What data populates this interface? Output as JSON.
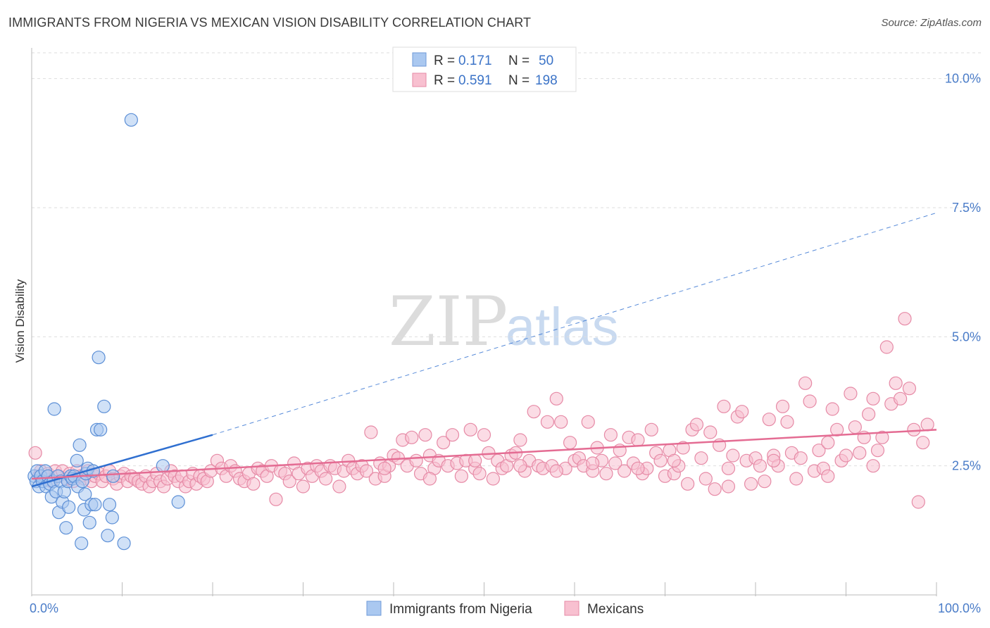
{
  "title": "IMMIGRANTS FROM NIGERIA VS MEXICAN VISION DISABILITY CORRELATION CHART",
  "source": "Source: ZipAtlas.com",
  "watermark": {
    "zip": "ZIP",
    "atlas": "atlas"
  },
  "chart_data": {
    "type": "scatter",
    "ylabel": "Vision Disability",
    "xlim": [
      0,
      100
    ],
    "ylim": [
      0,
      10.5
    ],
    "x_tick_labels": {
      "left": "0.0%",
      "right": "100.0%"
    },
    "y_ticks": [
      {
        "value": 2.5,
        "label": "2.5%"
      },
      {
        "value": 5.0,
        "label": "5.0%"
      },
      {
        "value": 7.5,
        "label": "7.5%"
      },
      {
        "value": 10.0,
        "label": "10.0%"
      }
    ],
    "grid": true,
    "legend_top": [
      {
        "r_label": "R = ",
        "r_value": "0.171",
        "n_label": "N = ",
        "n_value": "50",
        "color": "#aac8f0",
        "stroke": "#6f9ad8"
      },
      {
        "r_label": "R = ",
        "r_value": "0.591",
        "n_label": "N = ",
        "n_value": "198",
        "color": "#f8c0d0",
        "stroke": "#e68aa6"
      }
    ],
    "series": [
      {
        "name": "Immigrants from Nigeria",
        "color": "#aac8f0",
        "stroke": "#5c8fd6",
        "trend_color": "#2f6fd0",
        "trend": {
          "x0": 0,
          "y0": 2.1,
          "x1": 20,
          "y1": 3.1,
          "x_dash_end": 100,
          "y_dash_end": 7.4
        },
        "points": [
          [
            0.3,
            2.3
          ],
          [
            0.5,
            2.2
          ],
          [
            0.6,
            2.4
          ],
          [
            0.8,
            2.1
          ],
          [
            1.0,
            2.3
          ],
          [
            1.2,
            2.2
          ],
          [
            1.5,
            2.4
          ],
          [
            1.6,
            2.1
          ],
          [
            1.8,
            2.3
          ],
          [
            2.0,
            2.15
          ],
          [
            2.2,
            1.9
          ],
          [
            2.4,
            2.2
          ],
          [
            2.5,
            3.6
          ],
          [
            2.7,
            2.0
          ],
          [
            2.9,
            2.3
          ],
          [
            3.0,
            1.6
          ],
          [
            3.2,
            2.2
          ],
          [
            3.4,
            1.8
          ],
          [
            3.6,
            2.0
          ],
          [
            3.8,
            1.3
          ],
          [
            4.0,
            2.2
          ],
          [
            4.1,
            1.7
          ],
          [
            4.3,
            2.3
          ],
          [
            4.5,
            2.25
          ],
          [
            4.7,
            2.3
          ],
          [
            5.0,
            2.6
          ],
          [
            5.1,
            2.1
          ],
          [
            5.3,
            2.9
          ],
          [
            5.5,
            1.0
          ],
          [
            5.6,
            2.2
          ],
          [
            5.8,
            1.65
          ],
          [
            5.9,
            1.95
          ],
          [
            6.0,
            2.35
          ],
          [
            6.2,
            2.45
          ],
          [
            6.4,
            1.4
          ],
          [
            6.6,
            1.75
          ],
          [
            6.8,
            2.4
          ],
          [
            7.0,
            1.75
          ],
          [
            7.2,
            3.2
          ],
          [
            7.4,
            4.6
          ],
          [
            7.6,
            3.2
          ],
          [
            8.0,
            3.65
          ],
          [
            8.4,
            1.15
          ],
          [
            8.6,
            1.75
          ],
          [
            8.9,
            1.5
          ],
          [
            9.0,
            2.3
          ],
          [
            10.2,
            1.0
          ],
          [
            11.0,
            9.2
          ],
          [
            14.5,
            2.5
          ],
          [
            16.2,
            1.8
          ]
        ]
      },
      {
        "name": "Mexicans",
        "color": "#f8c0d0",
        "stroke": "#e68aa6",
        "trend_color": "#e46c93",
        "trend": {
          "x0": 0,
          "y0": 2.25,
          "x1": 100,
          "y1": 3.2
        },
        "points": [
          [
            0.4,
            2.75
          ],
          [
            0.8,
            2.3
          ],
          [
            1.0,
            2.4
          ],
          [
            1.4,
            2.25
          ],
          [
            1.8,
            2.35
          ],
          [
            2.2,
            2.2
          ],
          [
            2.6,
            2.4
          ],
          [
            3.0,
            2.3
          ],
          [
            3.4,
            2.4
          ],
          [
            3.8,
            2.25
          ],
          [
            4.2,
            2.35
          ],
          [
            4.6,
            2.2
          ],
          [
            5.0,
            2.4
          ],
          [
            5.4,
            2.3
          ],
          [
            5.8,
            2.25
          ],
          [
            6.2,
            2.4
          ],
          [
            6.6,
            2.2
          ],
          [
            7.0,
            2.3
          ],
          [
            7.4,
            2.35
          ],
          [
            7.8,
            2.2
          ],
          [
            8.2,
            2.3
          ],
          [
            8.6,
            2.4
          ],
          [
            9.0,
            2.25
          ],
          [
            9.4,
            2.15
          ],
          [
            9.8,
            2.3
          ],
          [
            10.2,
            2.35
          ],
          [
            10.6,
            2.2
          ],
          [
            11.0,
            2.3
          ],
          [
            11.4,
            2.25
          ],
          [
            11.8,
            2.2
          ],
          [
            12.2,
            2.15
          ],
          [
            12.6,
            2.3
          ],
          [
            13.0,
            2.1
          ],
          [
            13.4,
            2.2
          ],
          [
            13.8,
            2.35
          ],
          [
            14.2,
            2.2
          ],
          [
            14.6,
            2.1
          ],
          [
            15.0,
            2.25
          ],
          [
            15.4,
            2.4
          ],
          [
            15.8,
            2.3
          ],
          [
            16.2,
            2.2
          ],
          [
            16.6,
            2.3
          ],
          [
            17.0,
            2.1
          ],
          [
            17.4,
            2.2
          ],
          [
            17.8,
            2.35
          ],
          [
            18.2,
            2.15
          ],
          [
            18.6,
            2.3
          ],
          [
            19.0,
            2.25
          ],
          [
            19.4,
            2.2
          ],
          [
            19.8,
            2.4
          ],
          [
            20.5,
            2.6
          ],
          [
            21.0,
            2.45
          ],
          [
            21.5,
            2.3
          ],
          [
            22.0,
            2.5
          ],
          [
            22.5,
            2.4
          ],
          [
            23.0,
            2.25
          ],
          [
            23.5,
            2.2
          ],
          [
            24.0,
            2.35
          ],
          [
            24.5,
            2.15
          ],
          [
            25.0,
            2.45
          ],
          [
            25.5,
            2.4
          ],
          [
            26.0,
            2.3
          ],
          [
            26.5,
            2.5
          ],
          [
            27.0,
            1.85
          ],
          [
            27.5,
            2.4
          ],
          [
            28.0,
            2.35
          ],
          [
            28.5,
            2.2
          ],
          [
            29.0,
            2.55
          ],
          [
            29.5,
            2.35
          ],
          [
            30.0,
            2.1
          ],
          [
            30.5,
            2.45
          ],
          [
            31.0,
            2.3
          ],
          [
            31.5,
            2.5
          ],
          [
            32.0,
            2.4
          ],
          [
            32.5,
            2.25
          ],
          [
            33.0,
            2.5
          ],
          [
            33.5,
            2.45
          ],
          [
            34.0,
            2.1
          ],
          [
            34.5,
            2.4
          ],
          [
            35.0,
            2.6
          ],
          [
            35.5,
            2.45
          ],
          [
            36.0,
            2.35
          ],
          [
            36.5,
            2.5
          ],
          [
            37.0,
            2.4
          ],
          [
            37.5,
            3.15
          ],
          [
            38.0,
            2.25
          ],
          [
            38.5,
            2.55
          ],
          [
            39.0,
            2.3
          ],
          [
            39.5,
            2.5
          ],
          [
            40.0,
            2.7
          ],
          [
            40.5,
            2.65
          ],
          [
            41.0,
            3.0
          ],
          [
            41.5,
            2.5
          ],
          [
            42.0,
            3.05
          ],
          [
            42.5,
            2.6
          ],
          [
            43.0,
            2.35
          ],
          [
            43.5,
            3.1
          ],
          [
            44.0,
            2.7
          ],
          [
            44.5,
            2.45
          ],
          [
            45.0,
            2.6
          ],
          [
            45.5,
            2.95
          ],
          [
            46.0,
            2.5
          ],
          [
            46.5,
            3.1
          ],
          [
            47.0,
            2.55
          ],
          [
            47.5,
            2.3
          ],
          [
            48.0,
            2.6
          ],
          [
            48.5,
            3.2
          ],
          [
            49.0,
            2.45
          ],
          [
            49.5,
            2.35
          ],
          [
            50.0,
            3.1
          ],
          [
            50.5,
            2.75
          ],
          [
            51.0,
            2.25
          ],
          [
            51.5,
            2.6
          ],
          [
            52.0,
            2.45
          ],
          [
            52.5,
            2.5
          ],
          [
            53.0,
            2.7
          ],
          [
            53.5,
            2.75
          ],
          [
            54.0,
            3.0
          ],
          [
            54.5,
            2.4
          ],
          [
            55.0,
            2.6
          ],
          [
            55.5,
            3.55
          ],
          [
            56.0,
            2.5
          ],
          [
            56.5,
            2.45
          ],
          [
            57.0,
            3.35
          ],
          [
            57.5,
            2.5
          ],
          [
            58.0,
            3.8
          ],
          [
            58.5,
            3.35
          ],
          [
            59.0,
            2.45
          ],
          [
            59.5,
            2.95
          ],
          [
            60.0,
            2.6
          ],
          [
            60.5,
            2.65
          ],
          [
            61.0,
            2.5
          ],
          [
            61.5,
            3.35
          ],
          [
            62.0,
            2.4
          ],
          [
            62.5,
            2.85
          ],
          [
            63.0,
            2.6
          ],
          [
            63.5,
            2.35
          ],
          [
            64.0,
            3.1
          ],
          [
            64.5,
            2.55
          ],
          [
            65.0,
            2.8
          ],
          [
            65.5,
            2.4
          ],
          [
            66.0,
            3.05
          ],
          [
            66.5,
            2.55
          ],
          [
            67.0,
            3.0
          ],
          [
            67.5,
            2.35
          ],
          [
            68.0,
            2.45
          ],
          [
            68.5,
            3.2
          ],
          [
            69.0,
            2.75
          ],
          [
            69.5,
            2.6
          ],
          [
            70.0,
            2.3
          ],
          [
            70.5,
            2.8
          ],
          [
            71.0,
            2.35
          ],
          [
            71.5,
            2.5
          ],
          [
            72.0,
            2.85
          ],
          [
            72.5,
            2.15
          ],
          [
            73.0,
            3.2
          ],
          [
            73.5,
            3.3
          ],
          [
            74.0,
            2.65
          ],
          [
            74.5,
            2.25
          ],
          [
            75.0,
            3.15
          ],
          [
            75.5,
            2.05
          ],
          [
            76.0,
            2.9
          ],
          [
            76.5,
            3.65
          ],
          [
            77.0,
            2.45
          ],
          [
            77.5,
            2.7
          ],
          [
            78.0,
            3.45
          ],
          [
            78.5,
            3.55
          ],
          [
            79.0,
            2.6
          ],
          [
            79.5,
            2.15
          ],
          [
            80.0,
            2.65
          ],
          [
            80.5,
            2.5
          ],
          [
            81.0,
            2.2
          ],
          [
            81.5,
            3.4
          ],
          [
            82.0,
            2.7
          ],
          [
            82.5,
            2.5
          ],
          [
            83.0,
            3.65
          ],
          [
            83.5,
            3.35
          ],
          [
            84.0,
            2.75
          ],
          [
            84.5,
            2.25
          ],
          [
            85.0,
            2.65
          ],
          [
            85.5,
            4.1
          ],
          [
            86.0,
            3.75
          ],
          [
            86.5,
            2.4
          ],
          [
            87.0,
            2.8
          ],
          [
            87.5,
            2.45
          ],
          [
            88.0,
            2.95
          ],
          [
            88.5,
            3.6
          ],
          [
            89.0,
            3.2
          ],
          [
            89.5,
            2.6
          ],
          [
            90.0,
            2.7
          ],
          [
            90.5,
            3.9
          ],
          [
            91.0,
            3.25
          ],
          [
            91.5,
            2.75
          ],
          [
            92.0,
            3.05
          ],
          [
            92.5,
            3.5
          ],
          [
            93.0,
            3.8
          ],
          [
            93.5,
            2.8
          ],
          [
            94.0,
            3.05
          ],
          [
            94.5,
            4.8
          ],
          [
            95.0,
            3.7
          ],
          [
            95.5,
            4.1
          ],
          [
            96.0,
            3.8
          ],
          [
            96.5,
            5.35
          ],
          [
            97.0,
            4.0
          ],
          [
            97.5,
            3.2
          ],
          [
            98.0,
            1.8
          ],
          [
            98.5,
            2.95
          ],
          [
            99.0,
            3.3
          ],
          [
            93.0,
            2.5
          ],
          [
            88.0,
            2.3
          ],
          [
            82.0,
            2.6
          ],
          [
            77.0,
            2.1
          ],
          [
            71.0,
            2.6
          ],
          [
            67.0,
            2.45
          ],
          [
            62.0,
            2.55
          ],
          [
            58.0,
            2.4
          ],
          [
            54.0,
            2.5
          ],
          [
            49.0,
            2.6
          ],
          [
            44.0,
            2.25
          ],
          [
            39.0,
            2.45
          ]
        ]
      }
    ]
  }
}
